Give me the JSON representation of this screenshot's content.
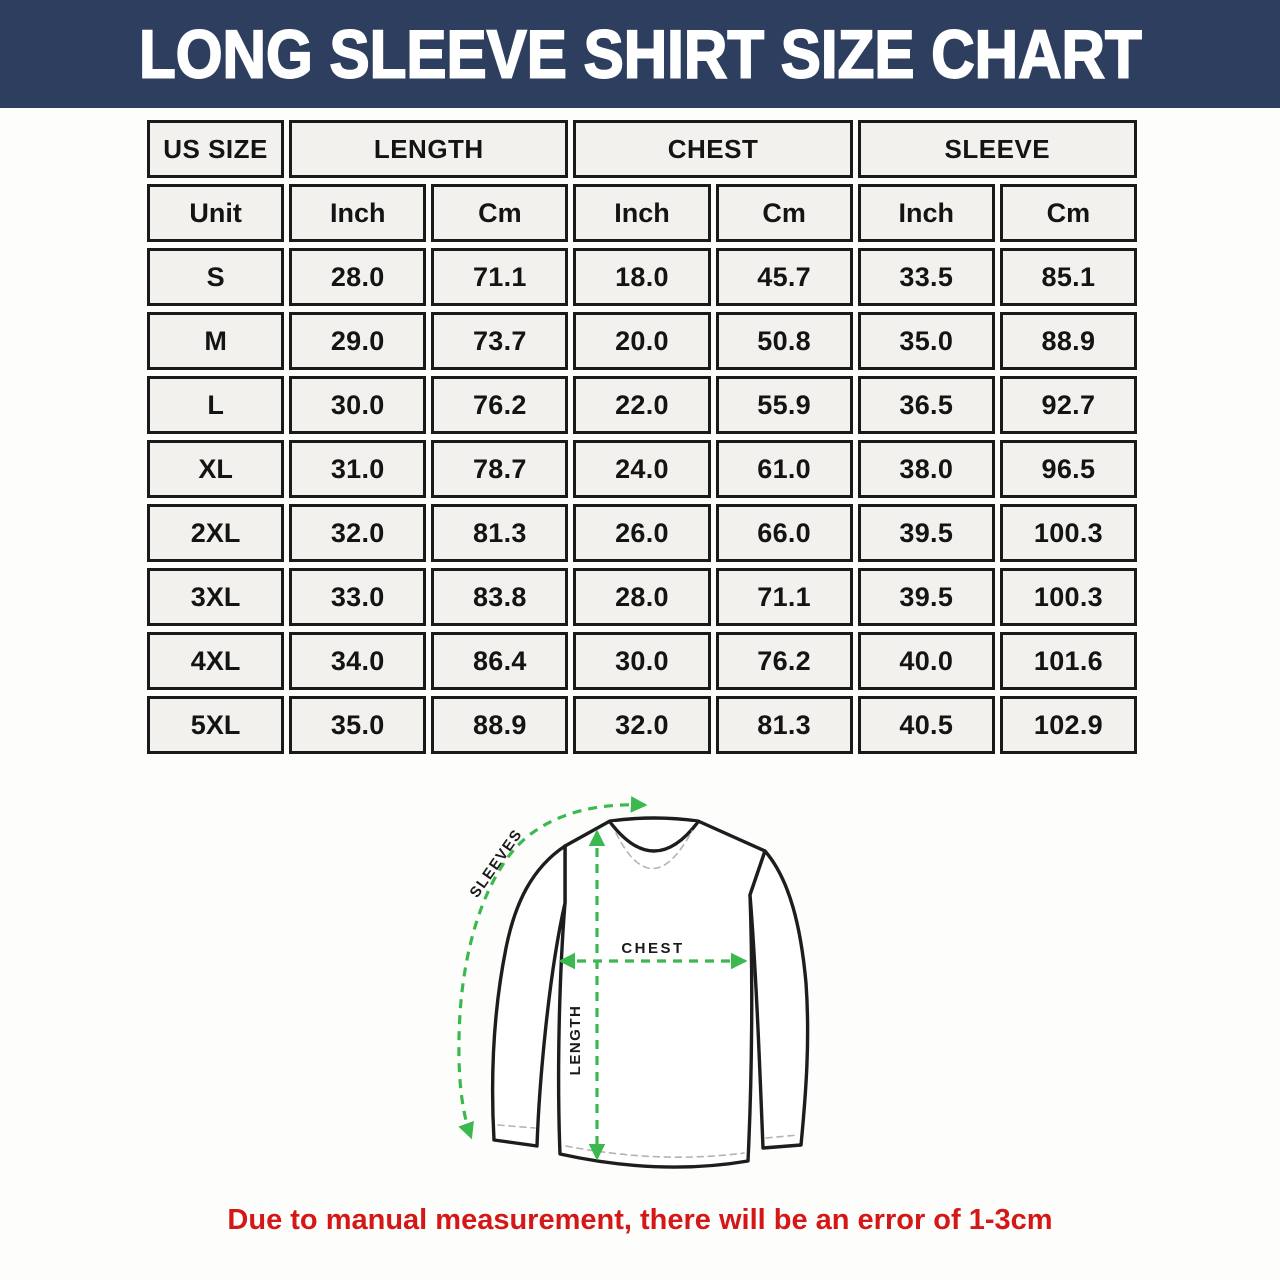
{
  "banner": {
    "title": "LONG SLEEVE SHIRT SIZE CHART",
    "bg_color": "#2d3e5f"
  },
  "table": {
    "group_headers": [
      {
        "label": "US SIZE",
        "span": 1
      },
      {
        "label": "LENGTH",
        "span": 2
      },
      {
        "label": "CHEST",
        "span": 2
      },
      {
        "label": "SLEEVE",
        "span": 2
      }
    ],
    "unit_row": [
      "Unit",
      "Inch",
      "Cm",
      "Inch",
      "Cm",
      "Inch",
      "Cm"
    ],
    "rows": [
      [
        "S",
        "28.0",
        "71.1",
        "18.0",
        "45.7",
        "33.5",
        "85.1"
      ],
      [
        "M",
        "29.0",
        "73.7",
        "20.0",
        "50.8",
        "35.0",
        "88.9"
      ],
      [
        "L",
        "30.0",
        "76.2",
        "22.0",
        "55.9",
        "36.5",
        "92.7"
      ],
      [
        "XL",
        "31.0",
        "78.7",
        "24.0",
        "61.0",
        "38.0",
        "96.5"
      ],
      [
        "2XL",
        "32.0",
        "81.3",
        "26.0",
        "66.0",
        "39.5",
        "100.3"
      ],
      [
        "3XL",
        "33.0",
        "83.8",
        "28.0",
        "71.1",
        "39.5",
        "100.3"
      ],
      [
        "4XL",
        "34.0",
        "86.4",
        "30.0",
        "76.2",
        "40.0",
        "101.6"
      ],
      [
        "5XL",
        "35.0",
        "88.9",
        "32.0",
        "81.3",
        "40.5",
        "102.9"
      ]
    ]
  },
  "diagram": {
    "sleeves_label": "SLEEVES",
    "chest_label": "CHEST",
    "length_label": "LENGTH",
    "arrow_color": "#3cb94e"
  },
  "disclaimer": {
    "text": "Due to manual measurement, there will be an error of 1-3cm",
    "color": "#d41717"
  },
  "chart_data": {
    "type": "table",
    "title": "LONG SLEEVE SHIRT SIZE CHART",
    "columns": [
      "US SIZE",
      "LENGTH Inch",
      "LENGTH Cm",
      "CHEST Inch",
      "CHEST Cm",
      "SLEEVE Inch",
      "SLEEVE Cm"
    ],
    "rows": [
      {
        "size": "S",
        "length_inch": 28.0,
        "length_cm": 71.1,
        "chest_inch": 18.0,
        "chest_cm": 45.7,
        "sleeve_inch": 33.5,
        "sleeve_cm": 85.1
      },
      {
        "size": "M",
        "length_inch": 29.0,
        "length_cm": 73.7,
        "chest_inch": 20.0,
        "chest_cm": 50.8,
        "sleeve_inch": 35.0,
        "sleeve_cm": 88.9
      },
      {
        "size": "L",
        "length_inch": 30.0,
        "length_cm": 76.2,
        "chest_inch": 22.0,
        "chest_cm": 55.9,
        "sleeve_inch": 36.5,
        "sleeve_cm": 92.7
      },
      {
        "size": "XL",
        "length_inch": 31.0,
        "length_cm": 78.7,
        "chest_inch": 24.0,
        "chest_cm": 61.0,
        "sleeve_inch": 38.0,
        "sleeve_cm": 96.5
      },
      {
        "size": "2XL",
        "length_inch": 32.0,
        "length_cm": 81.3,
        "chest_inch": 26.0,
        "chest_cm": 66.0,
        "sleeve_inch": 39.5,
        "sleeve_cm": 100.3
      },
      {
        "size": "3XL",
        "length_inch": 33.0,
        "length_cm": 83.8,
        "chest_inch": 28.0,
        "chest_cm": 71.1,
        "sleeve_inch": 39.5,
        "sleeve_cm": 100.3
      },
      {
        "size": "4XL",
        "length_inch": 34.0,
        "length_cm": 86.4,
        "chest_inch": 30.0,
        "chest_cm": 76.2,
        "sleeve_inch": 40.0,
        "sleeve_cm": 101.6
      },
      {
        "size": "5XL",
        "length_inch": 35.0,
        "length_cm": 88.9,
        "chest_inch": 32.0,
        "chest_cm": 81.3,
        "sleeve_inch": 40.5,
        "sleeve_cm": 102.9
      }
    ],
    "footnote": "Due to manual measurement, there will be an error of 1-3cm"
  }
}
